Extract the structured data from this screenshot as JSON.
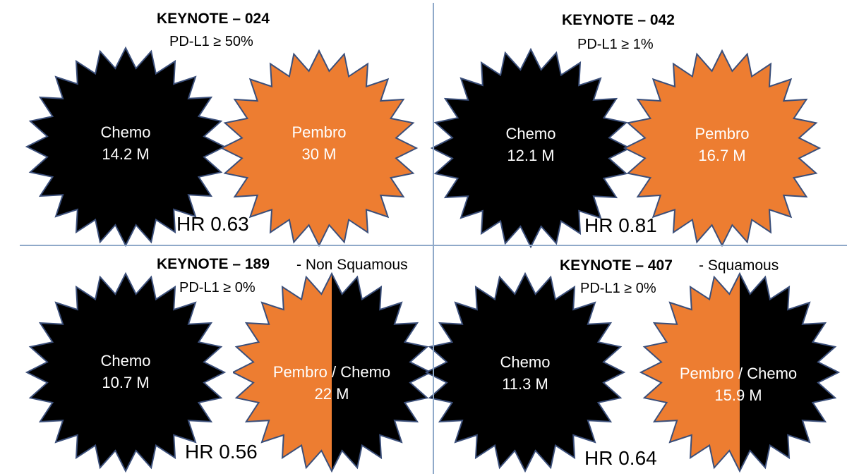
{
  "colors": {
    "chemo": "#000000",
    "pembro": "#ed7d31",
    "outline": "#3b4f7a",
    "divider": "#8fa9c9"
  },
  "quadrants": [
    {
      "title": "KEYNOTE – 024",
      "subtitle": "PD-L1 ≥ 50%",
      "note": "",
      "left": {
        "arm": "Chemo",
        "value": "14.2 M"
      },
      "right": {
        "arm": "Pembro",
        "value": "30 M",
        "style": "orange"
      },
      "hr": "HR 0.63"
    },
    {
      "title": "KEYNOTE – 042",
      "subtitle": "PD-L1 ≥ 1%",
      "note": "",
      "left": {
        "arm": "Chemo",
        "value": "12.1 M"
      },
      "right": {
        "arm": "Pembro",
        "value": "16.7 M",
        "style": "orange"
      },
      "hr": "HR 0.81"
    },
    {
      "title": "KEYNOTE – 189",
      "subtitle": "PD-L1 ≥ 0%",
      "note": "- Non Squamous",
      "left": {
        "arm": "Chemo",
        "value": "10.7 M"
      },
      "right": {
        "arm": "Pembro / Chemo",
        "value": "22 M",
        "style": "split"
      },
      "hr": "HR 0.56"
    },
    {
      "title": "KEYNOTE – 407",
      "subtitle": "PD-L1 ≥ 0%",
      "note": "- Squamous",
      "left": {
        "arm": "Chemo",
        "value": "11.3 M"
      },
      "right": {
        "arm": "Pembro / Chemo",
        "value": "15.9 M",
        "style": "split"
      },
      "hr": "HR 0.64"
    }
  ]
}
